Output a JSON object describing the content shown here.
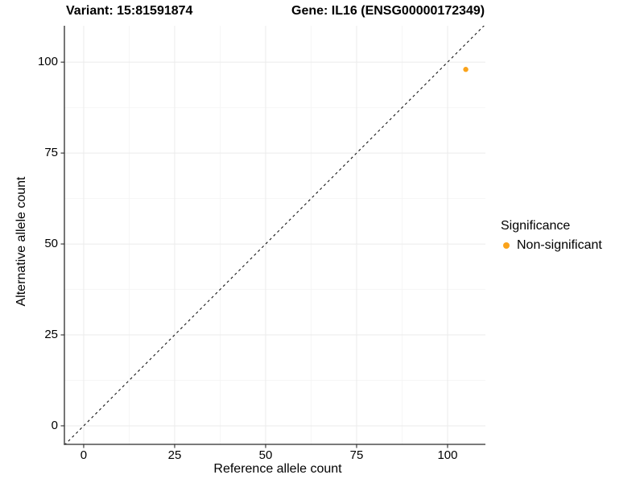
{
  "chart_data": {
    "type": "scatter",
    "title_left": "Variant: 15:81591874",
    "title_right": "Gene: IL16 (ENSG00000172349)",
    "xlabel": "Reference allele count",
    "ylabel": "Alternative allele count",
    "xlim": [
      -5.3,
      110.4
    ],
    "ylim": [
      -5.1,
      110.0
    ],
    "xticks": [
      0,
      25,
      50,
      75,
      100
    ],
    "yticks": [
      0,
      25,
      50,
      75,
      100
    ],
    "minor_xticks": [
      12.5,
      37.5,
      62.5,
      87.5
    ],
    "minor_yticks": [
      12.5,
      37.5,
      62.5,
      87.5
    ],
    "grid": true,
    "points": [
      {
        "x": 105,
        "y": 98,
        "series": "Non-significant"
      }
    ],
    "reference_line": {
      "type": "identity-diagonal",
      "style": "dashed"
    },
    "legend": {
      "title": "Significance",
      "position": "right",
      "items": [
        {
          "label": "Non-significant",
          "color": "#FAA31B"
        }
      ]
    },
    "colors": {
      "point": "#FAA31B",
      "axis": "#2b2b2b",
      "grid_major": "#EBEBEB",
      "grid_minor": "#F5F5F5",
      "dashed_line": "#161616",
      "text": "#000000"
    }
  }
}
